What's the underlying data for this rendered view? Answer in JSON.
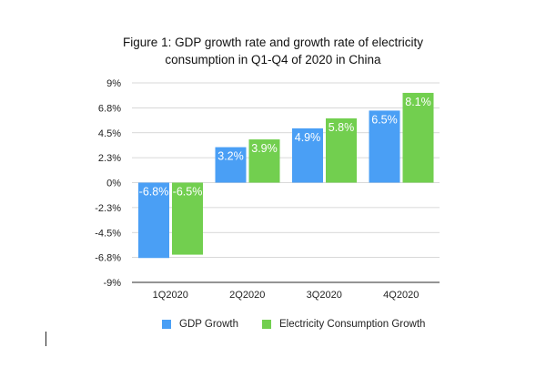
{
  "chart_data": {
    "type": "bar",
    "title": "Figure 1: GDP growth rate and growth rate of electricity consumption in Q1-Q4 of 2020 in China",
    "title_lines": [
      "Figure 1: GDP growth rate and growth rate of electricity",
      "consumption in Q1-Q4 of 2020 in China"
    ],
    "categories": [
      "1Q2020",
      "2Q2020",
      "3Q2020",
      "4Q2020"
    ],
    "series": [
      {
        "name": "GDP Growth",
        "color": "#4a9ff5",
        "values": [
          -6.8,
          3.2,
          4.9,
          6.5
        ],
        "labels": [
          "-6.8%",
          "3.2%",
          "4.9%",
          "6.5%"
        ]
      },
      {
        "name": "Electricity Consumption Growth",
        "color": "#72cf4f",
        "values": [
          -6.5,
          3.9,
          5.8,
          8.1
        ],
        "labels": [
          "-6.5%",
          "3.9%",
          "5.8%",
          "8.1%"
        ]
      }
    ],
    "xlabel": "",
    "ylabel": "",
    "ylim": [
      -9,
      9
    ],
    "yticks": [
      9,
      6.75,
      4.5,
      2.25,
      0,
      -2.25,
      -4.5,
      -6.75,
      -9
    ],
    "ytick_labels": [
      "9%",
      "6.8%",
      "4.5%",
      "2.3%",
      "0%",
      "-2.3%",
      "-4.5%",
      "-6.8%",
      "-9%"
    ],
    "grid": true,
    "legend_position": "bottom"
  }
}
